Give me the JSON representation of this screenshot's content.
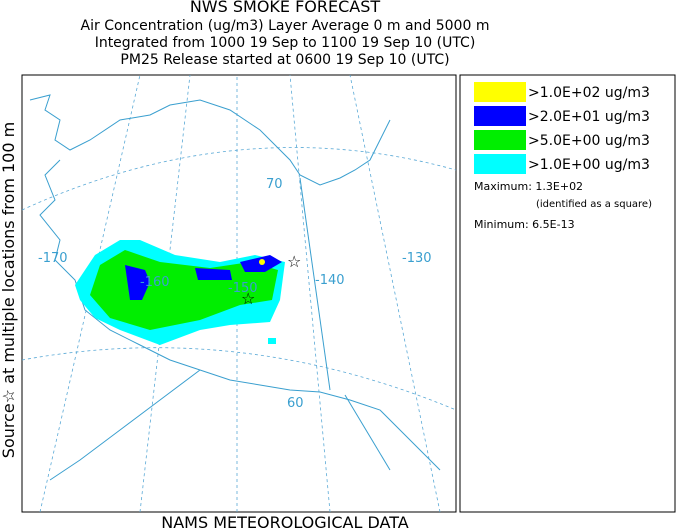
{
  "header": {
    "lines": [
      "NWS SMOKE FORECAST",
      "Air Concentration (ug/m3) Layer Average    0 m and  5000 m",
      "Integrated from 1000 19 Sep to 1100 19 Sep 10 (UTC)",
      "PM25 Release started at 0600 19 Sep 10 (UTC)"
    ]
  },
  "side_label": "Source☆ at multiple locations   from   100 m",
  "footer": "NAMS METEOROLOGICAL DATA",
  "legend": {
    "entries": [
      {
        "label": ">1.0E+02 ug/m3",
        "color": "#ffff00"
      },
      {
        "label": ">2.0E+01 ug/m3",
        "color": "#0000ff"
      },
      {
        "label": ">5.0E+00 ug/m3",
        "color": "#00ee00"
      },
      {
        "label": ">1.0E+00 ug/m3",
        "color": "#00ffff"
      }
    ],
    "maximum": "Maximum: 1.3E+02",
    "maximum_note": "(identified as a square)",
    "minimum": "Minimum: 6.5E-13"
  },
  "map": {
    "labels": [
      "-170",
      "-160",
      "-150",
      "-140",
      "-130",
      "70",
      "60"
    ]
  }
}
